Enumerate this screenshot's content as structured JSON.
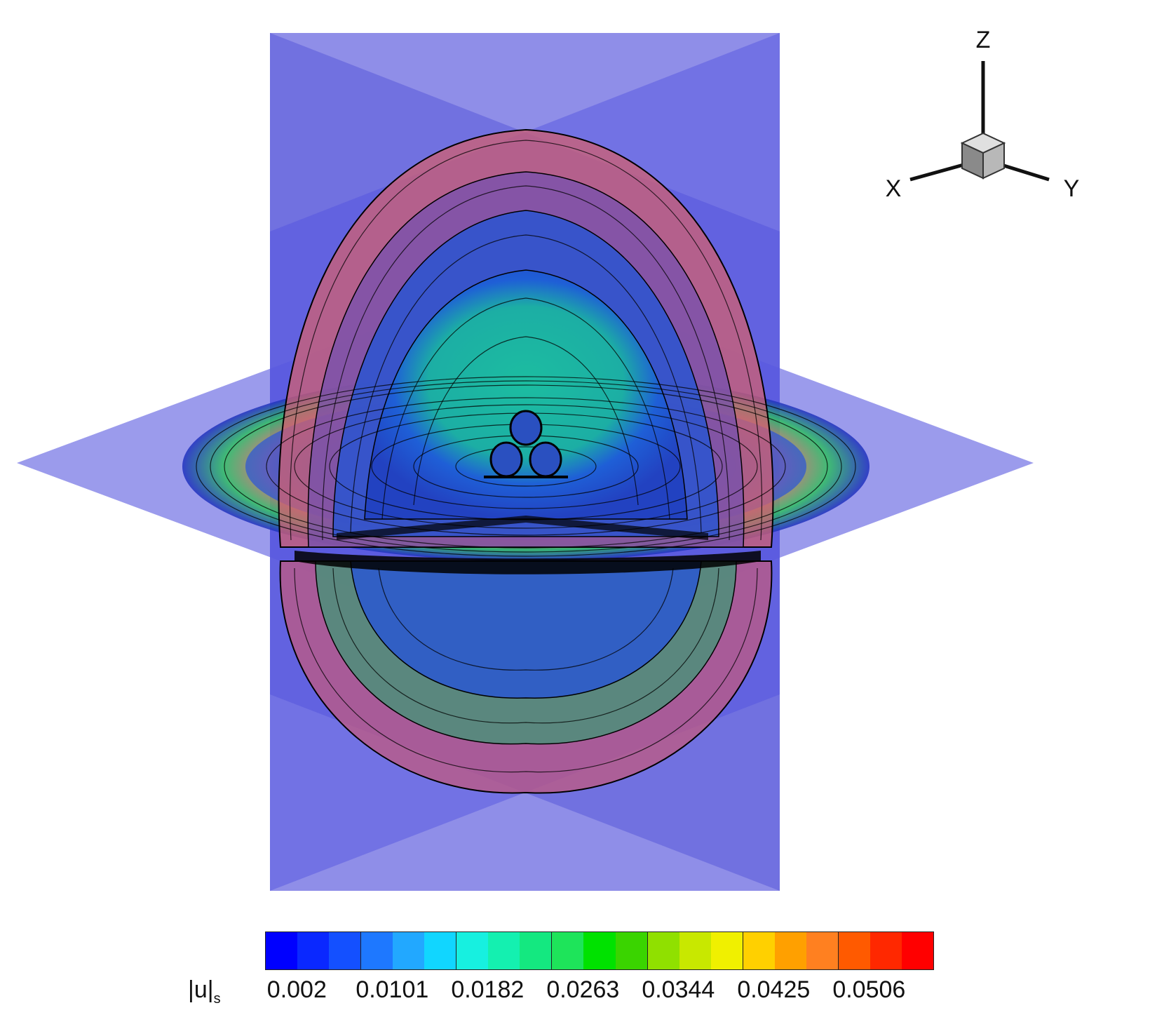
{
  "axes_triad": {
    "x_label": "X",
    "y_label": "Y",
    "z_label": "Z"
  },
  "colors": {
    "plane": "#5a5ae8",
    "plane_dark": "#3a3ad0",
    "contour": "#000000"
  },
  "legend": {
    "variable": "|u|",
    "variable_subscript": "s",
    "ticks": [
      "0.002",
      "0.0101",
      "0.0182",
      "0.0263",
      "0.0344",
      "0.0425",
      "0.0506"
    ],
    "colors": [
      "#0000ff",
      "#0a28ff",
      "#1450ff",
      "#1e78ff",
      "#22a8ff",
      "#11d6ff",
      "#17f0e0",
      "#14f0b0",
      "#14e880",
      "#1ee45a",
      "#00e200",
      "#3ad400",
      "#90e000",
      "#c8e800",
      "#f0f000",
      "#ffd000",
      "#ffa000",
      "#ff8020",
      "#ff5a00",
      "#ff2800",
      "#ff0000"
    ]
  }
}
